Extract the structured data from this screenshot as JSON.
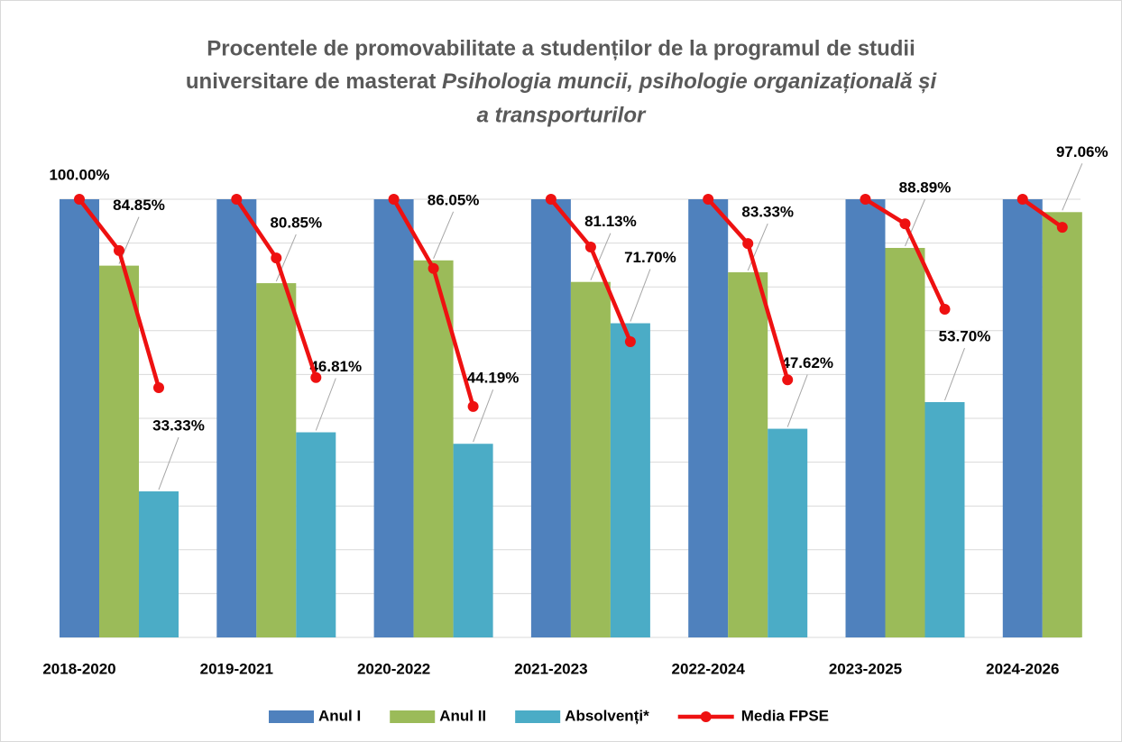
{
  "chart_data": {
    "type": "bar",
    "title": [
      "Procentele de promovabilitate a studenților de la programul de studii",
      "universitare de masterat ",
      "Psihologia muncii, psihologie organizațională și",
      "a transporturilor"
    ],
    "categories": [
      "2018-2020",
      "2019-2021",
      "2020-2022",
      "2021-2023",
      "2022-2024",
      "2023-2025",
      "2024-2026"
    ],
    "series": [
      {
        "name": "Anul I",
        "color": "#4f81bd",
        "values": [
          100,
          100,
          100,
          100,
          100,
          100,
          100
        ],
        "value_labels": [
          "100.00%",
          null,
          null,
          null,
          null,
          null,
          null
        ]
      },
      {
        "name": "Anul II",
        "color": "#9bbb59",
        "values": [
          84.85,
          80.85,
          86.05,
          81.13,
          83.33,
          88.89,
          97.06
        ],
        "value_labels": [
          "84.85%",
          "80.85%",
          "86.05%",
          "81.13%",
          "83.33%",
          "88.89%",
          "97.06%"
        ]
      },
      {
        "name": "Absolvenți*",
        "color": "#4bacc6",
        "values": [
          33.33,
          46.81,
          44.19,
          71.7,
          47.62,
          53.7,
          null
        ],
        "value_labels": [
          "33.33%",
          "46.81%",
          "44.19%",
          "71.70%",
          "47.62%",
          "53.70%",
          null
        ]
      },
      {
        "name": "Media FPSE",
        "color": "#ee1111",
        "type": "line",
        "values": [
          [
            100,
            88.3,
            57.0
          ],
          [
            100,
            86.6,
            59.3
          ],
          [
            100,
            84.2,
            52.7
          ],
          [
            100,
            89.1,
            67.5
          ],
          [
            100,
            89.9,
            58.8
          ],
          [
            100,
            94.4,
            74.9
          ],
          [
            100,
            93.6,
            null
          ]
        ]
      }
    ],
    "ylim": [
      0,
      100
    ],
    "yticks": [
      0,
      10,
      20,
      30,
      40,
      50,
      60,
      70,
      80,
      90,
      100
    ],
    "grid": true,
    "legend": "bottom"
  }
}
